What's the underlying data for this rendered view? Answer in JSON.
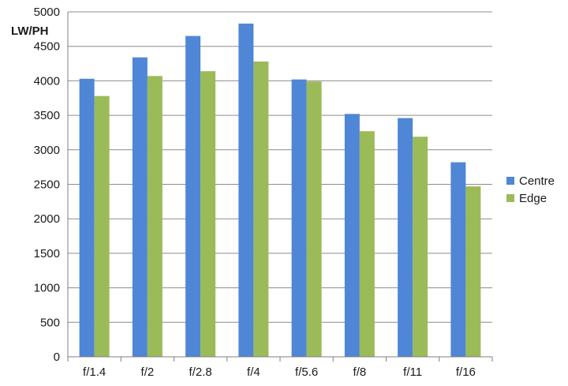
{
  "chart_data": {
    "type": "bar",
    "title": "",
    "xlabel": "",
    "ylabel": "LW/PH",
    "ylim": [
      0,
      5000
    ],
    "ytick_step": 500,
    "grid": true,
    "legend_position": "right",
    "categories": [
      "f/1.4",
      "f/2",
      "f/2.8",
      "f/4",
      "f/5.6",
      "f/8",
      "f/11",
      "f/16"
    ],
    "series": [
      {
        "name": "Centre",
        "color": "#4f86d6",
        "values": [
          4030,
          4340,
          4650,
          4830,
          4020,
          3520,
          3460,
          2820
        ]
      },
      {
        "name": "Edge",
        "color": "#9bbb59",
        "values": [
          3780,
          4070,
          4140,
          4280,
          3990,
          3270,
          3190,
          2470
        ]
      }
    ]
  }
}
